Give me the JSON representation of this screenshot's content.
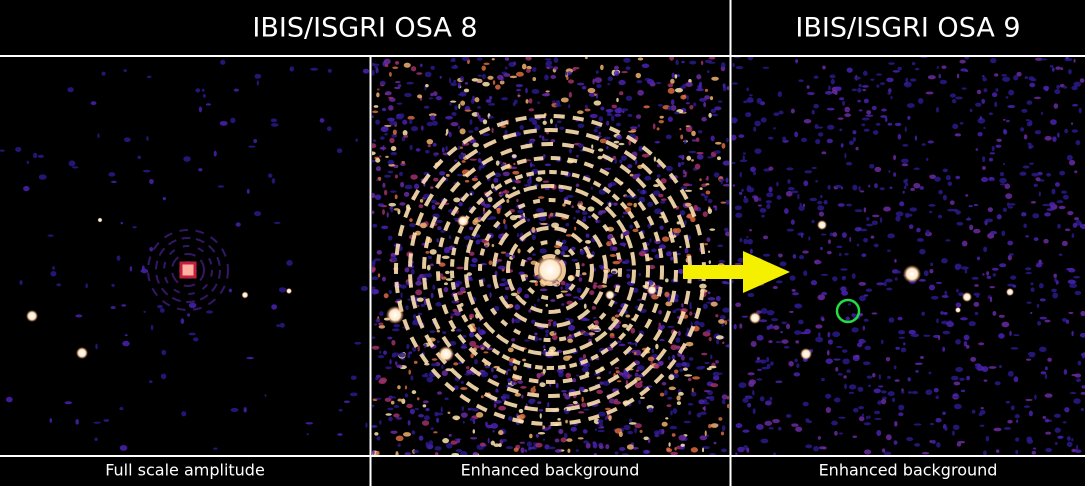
{
  "header": {
    "left_title": "IBIS/ISGRI OSA 8",
    "right_title": "IBIS/ISGRI OSA 9"
  },
  "panels": [
    {
      "caption": "Full scale amplitude"
    },
    {
      "caption": "Enhanced background"
    },
    {
      "caption": "Enhanced background"
    }
  ]
}
